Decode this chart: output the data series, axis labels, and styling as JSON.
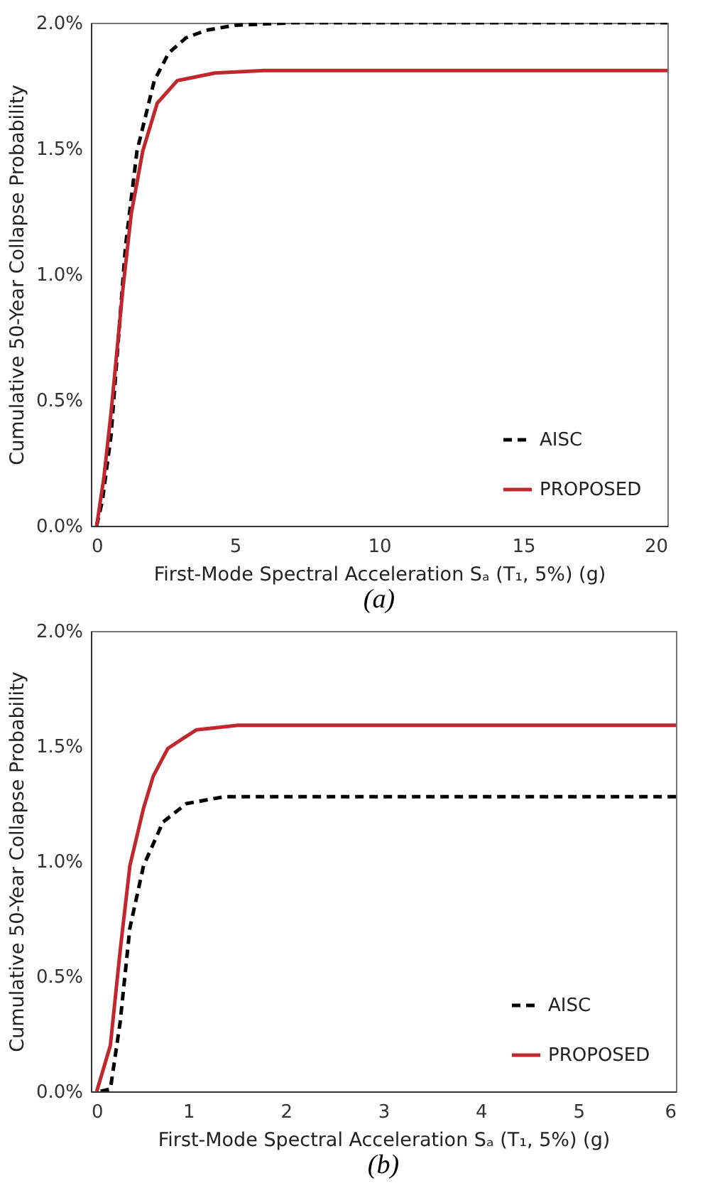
{
  "chart_data": [
    {
      "type": "line",
      "xlabel": "First-Mode Spectral Acceleration Sₐ (T₁, 5%) (g)",
      "ylabel": "Cumulative 50-Year Collapse Probability",
      "annotations": [
        "(a)"
      ],
      "xlim": [
        0,
        20
      ],
      "xticks": [
        0,
        5,
        10,
        15,
        20
      ],
      "ylim": [
        0,
        2
      ],
      "yticks": [
        {
          "value": 0,
          "label": "0.0%"
        },
        {
          "value": 0.5,
          "label": "0.5%"
        },
        {
          "value": 1,
          "label": "1.0%"
        },
        {
          "value": 1.5,
          "label": "1.5%"
        },
        {
          "value": 2,
          "label": "2.0%"
        }
      ],
      "legend": "bottom right",
      "grid": false,
      "series": [
        {
          "name": "AISC",
          "color": "#000000",
          "line_style": "dashed",
          "x": [
            0.2,
            0.4,
            0.7,
            1.2,
            1.6,
            2.2,
            2.7,
            3.3,
            4,
            5,
            7,
            10,
            15,
            20
          ],
          "values": [
            0,
            0.1,
            0.36,
            1.11,
            1.49,
            1.77,
            1.88,
            1.94,
            1.97,
            1.99,
            2,
            2,
            2,
            2
          ]
        },
        {
          "name": "PROPOSED",
          "color": "#c0282d",
          "line_style": "solid",
          "x": [
            0.2,
            0.45,
            0.7,
            1.1,
            1.4,
            1.8,
            2.3,
            3,
            4.3,
            6,
            10,
            15,
            20
          ],
          "values": [
            0,
            0.19,
            0.45,
            0.93,
            1.24,
            1.49,
            1.68,
            1.77,
            1.8,
            1.81,
            1.81,
            1.81,
            1.81
          ]
        }
      ]
    },
    {
      "type": "line",
      "xlabel": "First-Mode Spectral Acceleration Sₐ (T₁, 5%) (g)",
      "ylabel": "Cumulative 50-Year Collapse Probability",
      "annotations": [
        "(b)"
      ],
      "xlim": [
        0,
        6
      ],
      "xticks": [
        0,
        1,
        2,
        3,
        4,
        5,
        6
      ],
      "ylim": [
        0,
        2
      ],
      "yticks": [
        {
          "value": 0,
          "label": "0.0%"
        },
        {
          "value": 0.5,
          "label": "0.5%"
        },
        {
          "value": 1,
          "label": "1.0%"
        },
        {
          "value": 1.5,
          "label": "1.5%"
        },
        {
          "value": 2,
          "label": "2.0%"
        }
      ],
      "legend": "bottom right",
      "grid": false,
      "series": [
        {
          "name": "AISC",
          "color": "#000000",
          "line_style": "dashed",
          "x": [
            0.1,
            0.2,
            0.3,
            0.4,
            0.54,
            0.74,
            0.98,
            1.37,
            2,
            3,
            4,
            5,
            6
          ],
          "values": [
            0,
            0.01,
            0.3,
            0.71,
            0.98,
            1.17,
            1.25,
            1.28,
            1.28,
            1.28,
            1.28,
            1.28,
            1.28
          ]
        },
        {
          "name": "PROPOSED",
          "color": "#c0282d",
          "line_style": "solid",
          "x": [
            0.06,
            0.2,
            0.3,
            0.4,
            0.54,
            0.64,
            0.79,
            1.08,
            1.51,
            2,
            3,
            4,
            5,
            6
          ],
          "values": [
            0,
            0.2,
            0.61,
            0.98,
            1.23,
            1.37,
            1.49,
            1.57,
            1.59,
            1.59,
            1.59,
            1.59,
            1.59,
            1.59
          ]
        }
      ]
    }
  ]
}
